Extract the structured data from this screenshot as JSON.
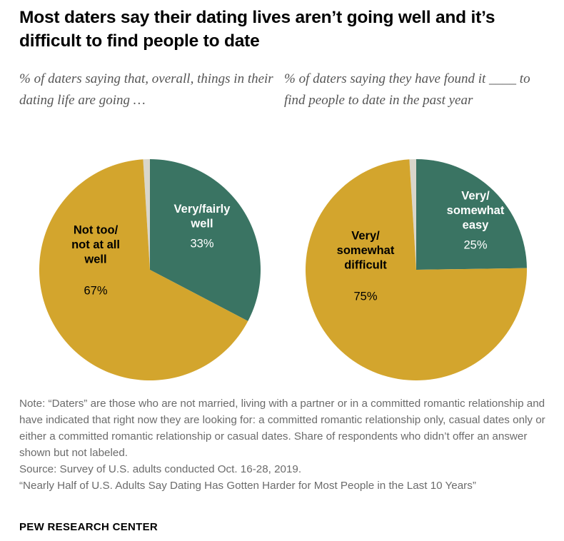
{
  "title": "Most daters say their dating lives aren’t going well and it’s difficult to find people to date",
  "colors": {
    "green": "#3a7463",
    "gold": "#d3a52d",
    "gray": "#d9d6cb"
  },
  "chart_data": [
    {
      "type": "pie",
      "subtitle": "% of daters saying that, overall, things in their dating life are going …",
      "slices": [
        {
          "label_lines": [
            "Very/fairly",
            "well"
          ],
          "value": 33,
          "value_label": "33%",
          "color": "#3a7463",
          "label_color": "#ffffff"
        },
        {
          "label_lines": [
            "Not too/",
            "not at all",
            "well"
          ],
          "value": 67,
          "value_label": "67%",
          "color": "#d3a52d",
          "label_color": "#000000"
        }
      ],
      "unlabeled_share": 1
    },
    {
      "type": "pie",
      "subtitle": "% of daters saying they have found it ____ to find people to date in the past year",
      "slices": [
        {
          "label_lines": [
            "Very/",
            "somewhat",
            "easy"
          ],
          "value": 25,
          "value_label": "25%",
          "color": "#3a7463",
          "label_color": "#ffffff"
        },
        {
          "label_lines": [
            "Very/",
            "somewhat",
            "difficult"
          ],
          "value": 75,
          "value_label": "75%",
          "color": "#d3a52d",
          "label_color": "#000000"
        }
      ],
      "unlabeled_share": 1
    }
  ],
  "notes": [
    "Note: “Daters” are those who are not married, living with a partner or in a committed romantic relationship and have indicated that right now they are looking for: a committed romantic relationship only, casual dates only or either a committed romantic relationship or casual dates. Share of respondents who didn’t offer an answer shown but not labeled.",
    "Source: Survey of U.S. adults conducted Oct. 16-28, 2019.",
    "“Nearly Half of U.S. Adults Say Dating Has Gotten Harder for Most People in the Last 10 Years”"
  ],
  "brand": "PEW RESEARCH CENTER"
}
